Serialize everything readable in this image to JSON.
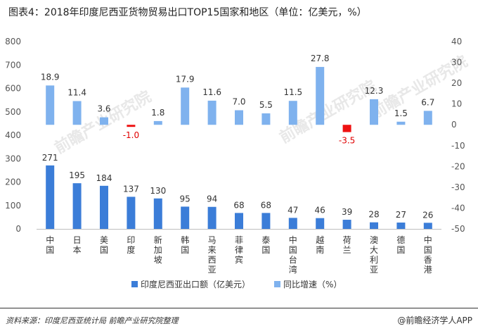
{
  "title": "图表4：2018年印度尼西亚货物贸易出口TOP15国家和地区（单位：亿美元，%）",
  "source": "资料来源：印度尼西亚统计局 前瞻产业研究院整理",
  "brand": "@前瞻经济学人APP",
  "watermark": "前瞻产业研究院",
  "chart_data": {
    "type": "bar",
    "categories": [
      "中国",
      "日本",
      "美国",
      "印度",
      "新加坡",
      "韩国",
      "马来西亚",
      "菲律宾",
      "泰国",
      "中国台湾",
      "越南",
      "荷兰",
      "澳大利亚",
      "德国",
      "中国香港"
    ],
    "series": [
      {
        "name": "印度尼西亚出口额（亿美元）",
        "axis": "left",
        "color": "#3b7dd8",
        "values": [
          271,
          195,
          184,
          137,
          130,
          95,
          94,
          68,
          68,
          47,
          46,
          39,
          28,
          27,
          26
        ]
      },
      {
        "name": "同比增速（%）",
        "axis": "right",
        "color": "#7fb2ee",
        "negative_color": "#ee1111",
        "values": [
          18.9,
          11.4,
          3.6,
          -1.0,
          1.8,
          17.9,
          11.6,
          7.0,
          5.5,
          11.5,
          27.8,
          -3.5,
          12.3,
          1.5,
          6.7
        ]
      }
    ],
    "y_left": {
      "ylim": [
        0,
        800
      ],
      "ticks": [
        "0",
        "100",
        "200",
        "300",
        "400",
        "500",
        "600",
        "700",
        "800"
      ]
    },
    "y_right": {
      "ylim": [
        -50,
        40
      ],
      "ticks": [
        "-50",
        "-40",
        "-30",
        "-20",
        "-10",
        "0",
        "10",
        "20",
        "30",
        "40"
      ]
    },
    "value_labels": [
      "271",
      "195",
      "184",
      "137",
      "130",
      "95",
      "94",
      "68",
      "68",
      "47",
      "46",
      "39",
      "28",
      "27",
      "26"
    ],
    "growth_labels": [
      "18.9",
      "11.4",
      "3.6",
      "-1.0",
      "1.8",
      "17.9",
      "11.6",
      "7.0",
      "5.5",
      "11.5",
      "27.8",
      "-3.5",
      "12.3",
      "1.5",
      "6.7"
    ],
    "legend_position": "bottom",
    "grid": false
  }
}
